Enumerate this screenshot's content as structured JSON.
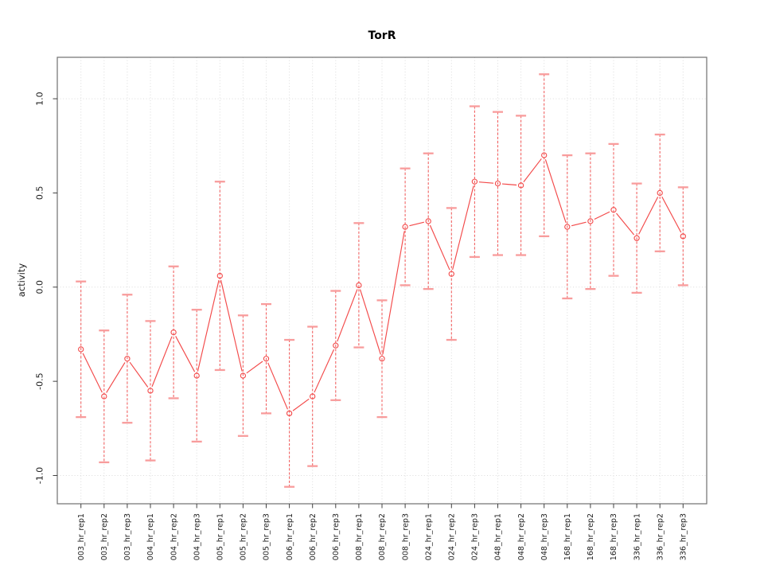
{
  "page": {
    "background": "#ffffff"
  },
  "chart_data": {
    "type": "line",
    "subtype": "points-with-symmetric-error-bars",
    "title": "TorR",
    "xlabel": "",
    "ylabel": "activity",
    "categories": [
      "003_hr_rep1",
      "003_hr_rep2",
      "003_hr_rep3",
      "004_hr_rep1",
      "004_hr_rep2",
      "004_hr_rep3",
      "005_hr_rep1",
      "005_hr_rep2",
      "005_hr_rep3",
      "006_hr_rep1",
      "006_hr_rep2",
      "006_hr_rep3",
      "008_hr_rep1",
      "008_hr_rep2",
      "008_hr_rep3",
      "024_hr_rep1",
      "024_hr_rep2",
      "024_hr_rep3",
      "048_hr_rep1",
      "048_hr_rep2",
      "048_hr_rep3",
      "168_hr_rep1",
      "168_hr_rep2",
      "168_hr_rep3",
      "336_hr_rep1",
      "336_hr_rep2",
      "336_hr_rep3"
    ],
    "series": [
      {
        "name": "TorR activity",
        "values": [
          -0.33,
          -0.58,
          -0.38,
          -0.55,
          -0.24,
          -0.47,
          0.06,
          -0.47,
          -0.38,
          -0.67,
          -0.58,
          -0.31,
          0.01,
          -0.38,
          0.32,
          0.35,
          0.07,
          0.56,
          0.55,
          0.54,
          0.7,
          0.32,
          0.35,
          0.41,
          0.26,
          0.5,
          0.27
        ],
        "errors": [
          0.36,
          0.35,
          0.34,
          0.37,
          0.35,
          0.35,
          0.5,
          0.32,
          0.29,
          0.39,
          0.37,
          0.29,
          0.33,
          0.31,
          0.31,
          0.36,
          0.35,
          0.4,
          0.38,
          0.37,
          0.43,
          0.38,
          0.36,
          0.35,
          0.29,
          0.31,
          0.26
        ]
      }
    ],
    "y_ticks": [
      -1.0,
      -0.5,
      0.0,
      0.5,
      1.0
    ],
    "y_tick_labels": [
      "-1.0",
      "-0.5",
      "0.0",
      "0.5",
      "1.0"
    ],
    "grid_y": [
      -1,
      0,
      1
    ],
    "ylim": [
      -1.15,
      1.22
    ],
    "grid": "dotted; vertical line at every category tick, horizontal at -1, 0 and 1",
    "legend": "none",
    "marker": "open-circle",
    "line_style": "segments-with-gaps-at-markers",
    "error_bar_style": "dashed vertical line with solid caps",
    "colors": {
      "series": "#f34949",
      "error_bar": "#f25c5c",
      "error_cap": "#f89c9c",
      "grid": "#dbdbdb",
      "axis": "#404040",
      "box": "#707070",
      "text": "#1c1c1c"
    }
  }
}
